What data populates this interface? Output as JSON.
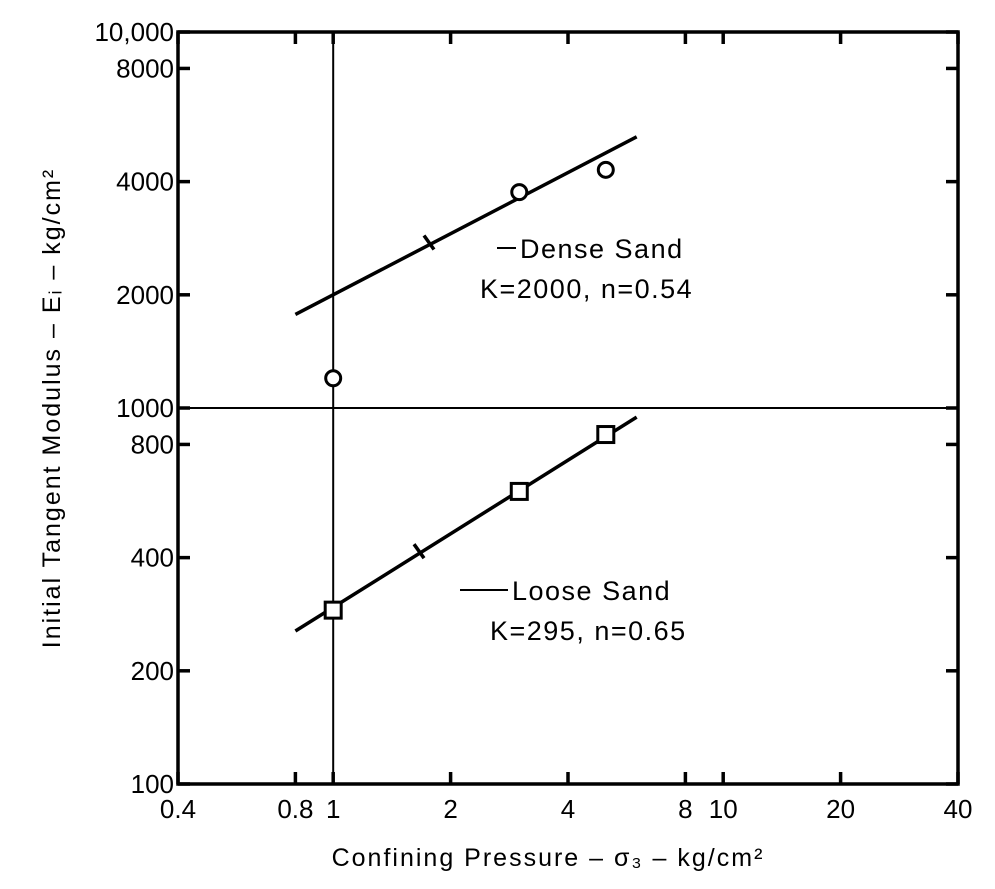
{
  "chart_data": {
    "type": "scatter",
    "xscale": "log",
    "yscale": "log",
    "xlim": [
      0.4,
      40
    ],
    "ylim": [
      100,
      10000
    ],
    "xlabel": "Confining Pressure – σ₃ – kg/cm²",
    "ylabel": "Initial Tangent Modulus – Eᵢ – kg/cm²",
    "x_ticks": [
      0.4,
      0.8,
      1,
      2,
      4,
      8,
      10,
      20,
      40
    ],
    "x_tick_labels": [
      "0.4",
      "0.8",
      "1",
      "2",
      "4",
      "8",
      "10",
      "20",
      "40"
    ],
    "y_ticks": [
      100,
      200,
      400,
      800,
      1000,
      2000,
      4000,
      8000,
      10000
    ],
    "y_tick_labels": [
      "100",
      "200",
      "400",
      "800",
      "1000",
      "2000",
      "4000",
      "8000",
      "10,000"
    ],
    "reference_lines": {
      "x": 1,
      "y": 1000
    },
    "series": [
      {
        "name": "Dense Sand",
        "marker": "circle",
        "points": [
          [
            1.0,
            1200
          ],
          [
            3.0,
            3750
          ],
          [
            5.0,
            4300
          ]
        ],
        "fit": {
          "K": 2000,
          "n": 0.54,
          "x_range": [
            0.8,
            6.0
          ]
        },
        "annotation": [
          "Dense Sand",
          "K=2000, n=0.54"
        ]
      },
      {
        "name": "Loose Sand",
        "marker": "square",
        "points": [
          [
            1.0,
            290
          ],
          [
            3.0,
            600
          ],
          [
            5.0,
            850
          ]
        ],
        "fit": {
          "K": 295,
          "n": 0.65,
          "x_range": [
            0.8,
            6.0
          ]
        },
        "annotation": [
          "Loose Sand",
          "K=295, n=0.65"
        ]
      }
    ]
  }
}
